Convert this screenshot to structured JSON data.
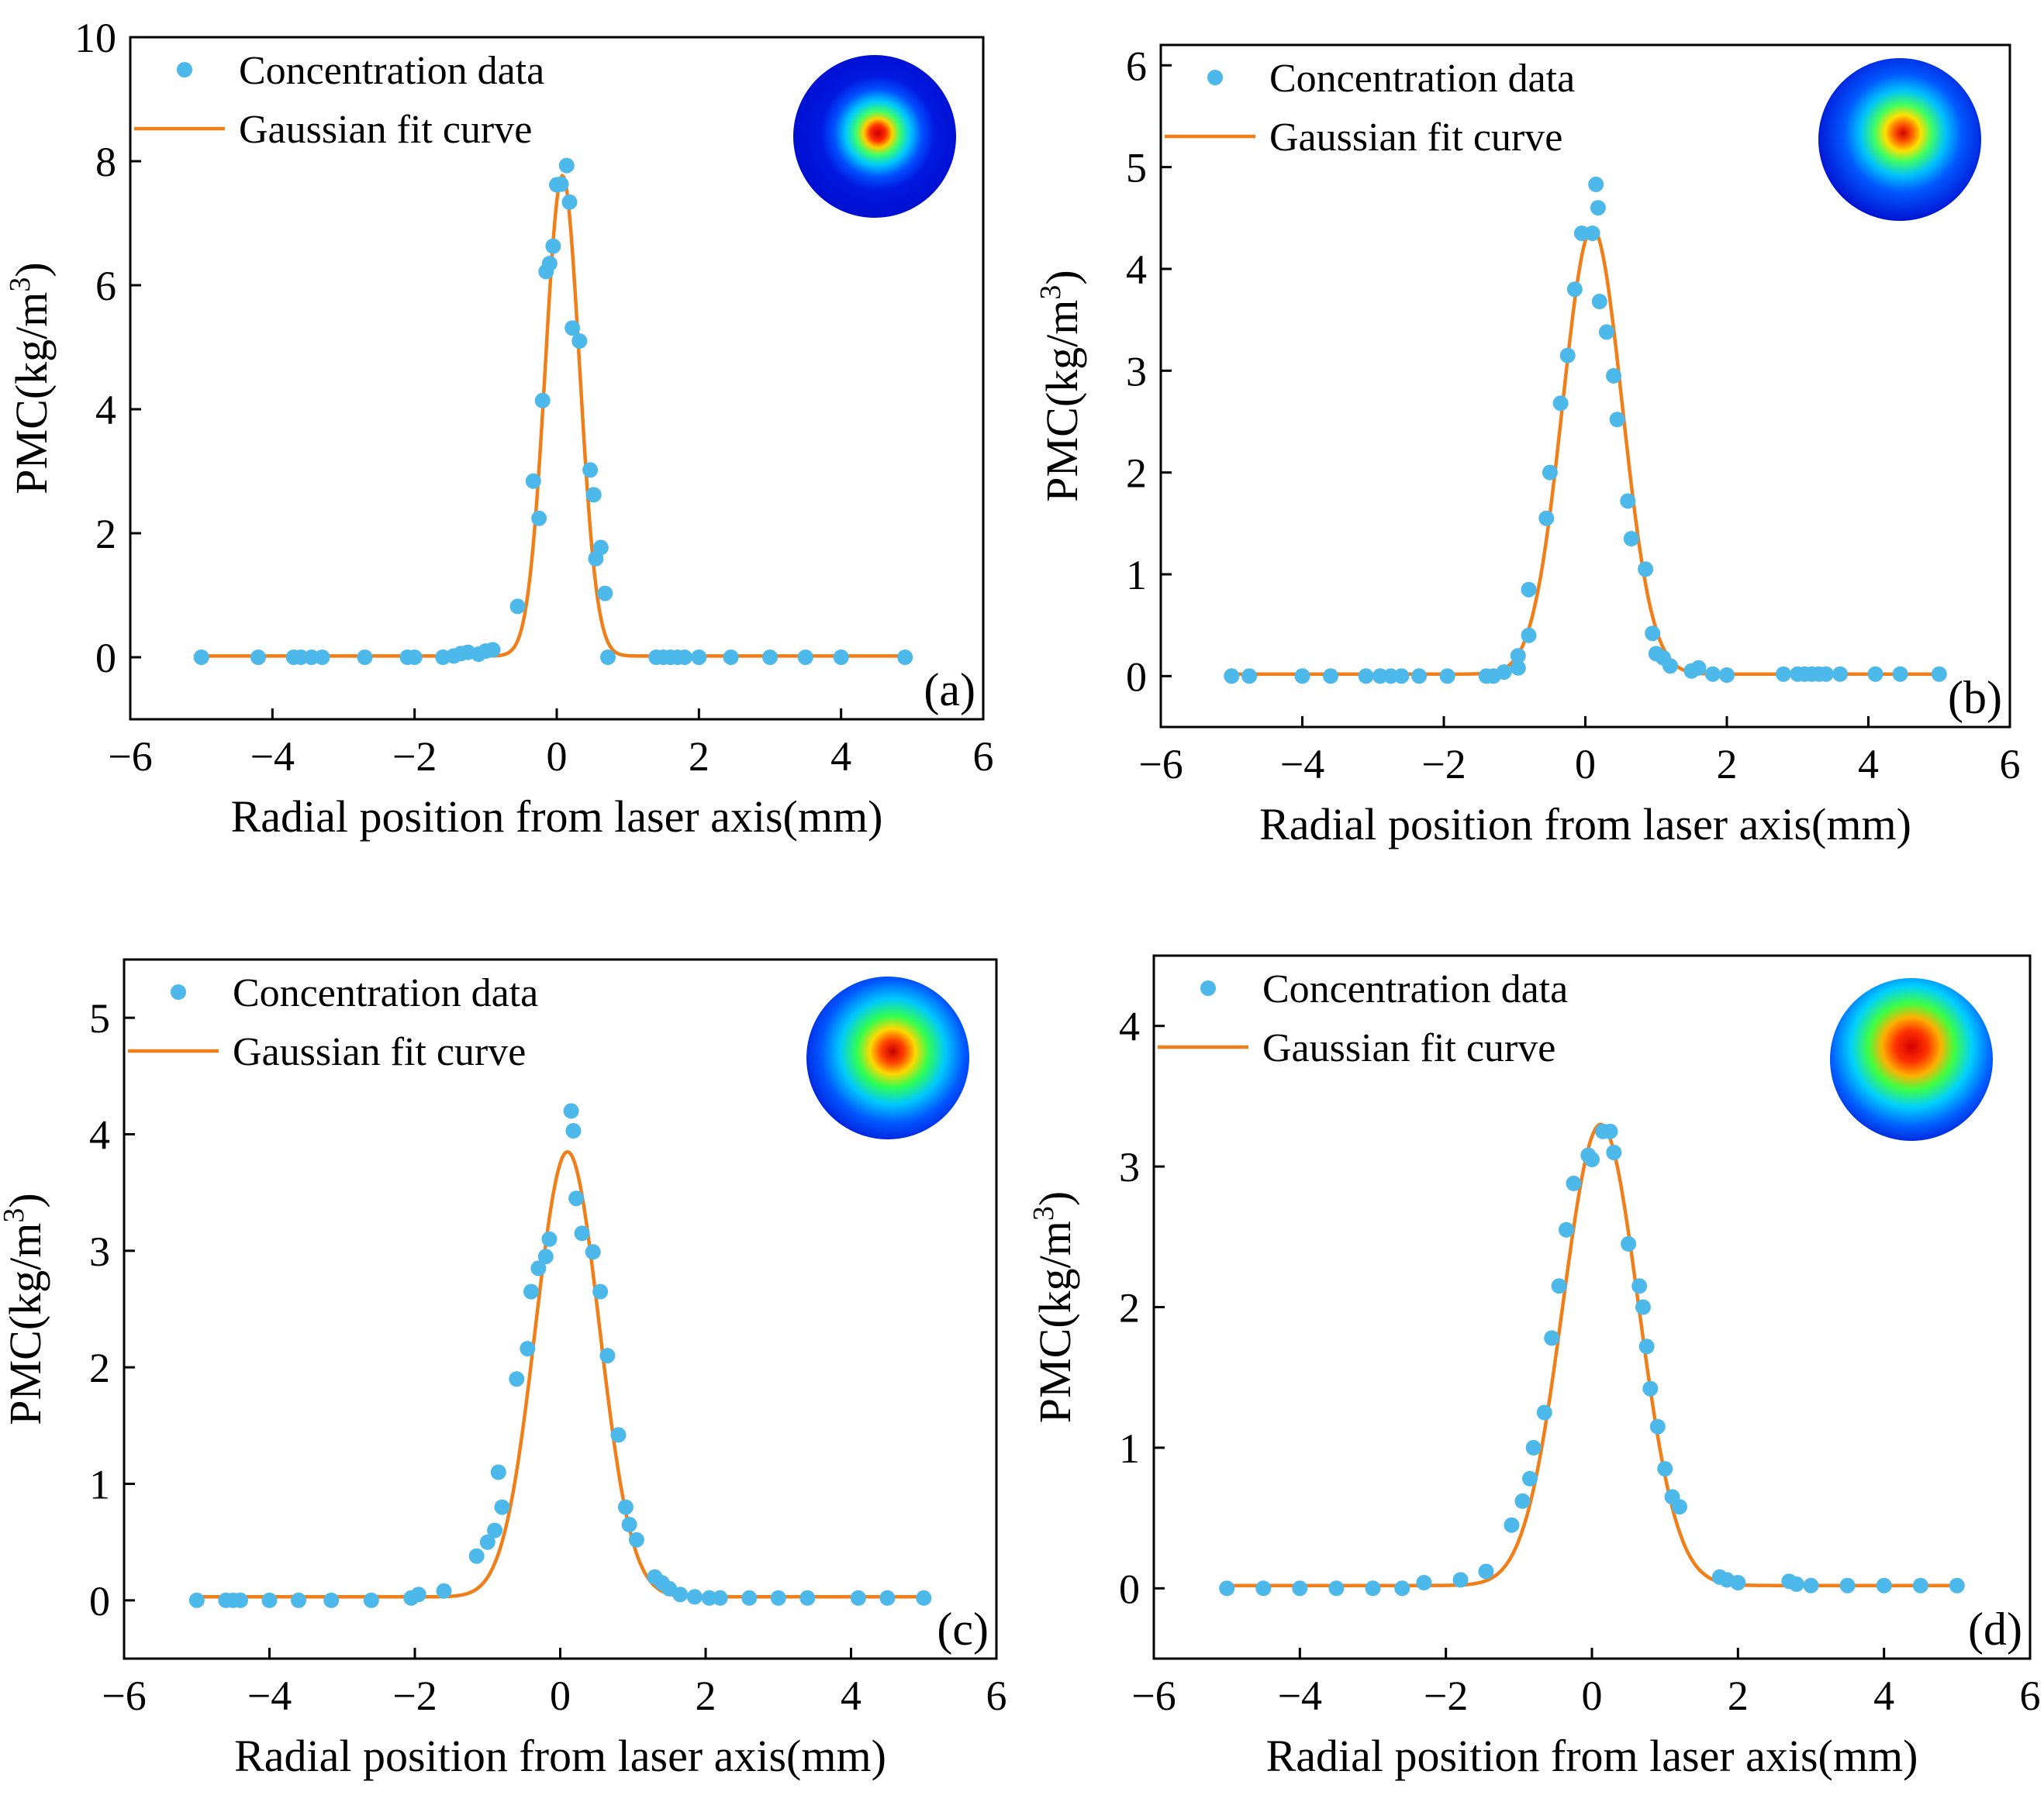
{
  "colors": {
    "data_points": "#4db8ea",
    "fit_curve": "#f07f1a",
    "axes": "#000000"
  },
  "chart_data": [
    {
      "type": "scatter",
      "panel_label": "(a)",
      "xlabel": "Radial position from laser axis(mm)",
      "ylabel": "PMC(kg/m",
      "ylabel_sup": "3",
      "ylabel_close": ")",
      "xlim": [
        -6,
        6
      ],
      "ylim": [
        -1,
        10
      ],
      "xticks": [
        -6,
        -4,
        -2,
        0,
        2,
        4,
        6
      ],
      "xtick_labels": [
        "−6",
        "−4",
        "−2",
        "0",
        "2",
        "4",
        "6"
      ],
      "yticks": [
        0,
        2,
        4,
        6,
        8,
        10
      ],
      "ytick_labels": [
        "0",
        "2",
        "4",
        "6",
        "8",
        "10"
      ],
      "legend": [
        "Concentration data",
        "Gaussian fit curve"
      ],
      "legend_position": "top-left",
      "inset": "spot-image",
      "fit": {
        "amplitude": 7.75,
        "center": 0.08,
        "sigma": 0.24,
        "offset": 0.02
      },
      "points": [
        [
          -5.0,
          0
        ],
        [
          -4.2,
          0
        ],
        [
          -3.7,
          0
        ],
        [
          -3.6,
          0
        ],
        [
          -3.45,
          0
        ],
        [
          -3.3,
          0
        ],
        [
          -2.7,
          0
        ],
        [
          -2.1,
          0
        ],
        [
          -2.0,
          0
        ],
        [
          -1.6,
          0
        ],
        [
          -1.45,
          0.02
        ],
        [
          -1.35,
          0.06
        ],
        [
          -1.25,
          0.08
        ],
        [
          -1.1,
          0.05
        ],
        [
          -1.0,
          0.1
        ],
        [
          -0.9,
          0.12
        ],
        [
          -0.55,
          0.82
        ],
        [
          -0.33,
          2.84
        ],
        [
          -0.25,
          2.24
        ],
        [
          -0.2,
          4.14
        ],
        [
          -0.15,
          6.22
        ],
        [
          -0.1,
          6.35
        ],
        [
          -0.05,
          6.63
        ],
        [
          0.0,
          7.62
        ],
        [
          0.06,
          7.63
        ],
        [
          0.14,
          7.93
        ],
        [
          0.18,
          7.34
        ],
        [
          0.22,
          5.31
        ],
        [
          0.32,
          5.1
        ],
        [
          0.47,
          3.02
        ],
        [
          0.52,
          2.62
        ],
        [
          0.55,
          1.59
        ],
        [
          0.62,
          1.77
        ],
        [
          0.68,
          1.03
        ],
        [
          0.72,
          0.0
        ],
        [
          1.4,
          0
        ],
        [
          1.5,
          0
        ],
        [
          1.6,
          0
        ],
        [
          1.7,
          0
        ],
        [
          1.8,
          0
        ],
        [
          2.0,
          0
        ],
        [
          2.45,
          0
        ],
        [
          3.0,
          0
        ],
        [
          3.5,
          0
        ],
        [
          4.0,
          0
        ],
        [
          4.9,
          0
        ]
      ]
    },
    {
      "type": "scatter",
      "panel_label": "(b)",
      "xlabel": "Radial position from laser axis(mm)",
      "ylabel": "PMC(kg/m",
      "ylabel_sup": "3",
      "ylabel_close": ")",
      "xlim": [
        -6,
        6
      ],
      "ylim": [
        -0.5,
        6.2
      ],
      "xticks": [
        -6,
        -4,
        -2,
        0,
        2,
        4,
        6
      ],
      "xtick_labels": [
        "−6",
        "−4",
        "−2",
        "0",
        "2",
        "4",
        "6"
      ],
      "yticks": [
        0,
        1,
        2,
        3,
        4,
        5,
        6
      ],
      "ytick_labels": [
        "0",
        "1",
        "2",
        "3",
        "4",
        "5",
        "6"
      ],
      "legend": [
        "Concentration data",
        "Gaussian fit curve"
      ],
      "legend_position": "top-left",
      "inset": "spot-image",
      "fit": {
        "amplitude": 4.38,
        "center": 0.1,
        "sigma": 0.42,
        "offset": 0.02
      },
      "points": [
        [
          -5.0,
          0
        ],
        [
          -4.75,
          0
        ],
        [
          -4.0,
          0
        ],
        [
          -3.6,
          0
        ],
        [
          -3.1,
          0
        ],
        [
          -2.9,
          0
        ],
        [
          -2.75,
          0
        ],
        [
          -2.6,
          0
        ],
        [
          -2.35,
          0
        ],
        [
          -1.95,
          0
        ],
        [
          -1.4,
          0
        ],
        [
          -1.3,
          0
        ],
        [
          -1.15,
          0.04
        ],
        [
          -0.95,
          0.08
        ],
        [
          -0.95,
          0.2
        ],
        [
          -0.8,
          0.4
        ],
        [
          -0.8,
          0.85
        ],
        [
          -0.55,
          1.55
        ],
        [
          -0.5,
          2.0
        ],
        [
          -0.35,
          2.68
        ],
        [
          -0.25,
          3.15
        ],
        [
          -0.15,
          3.8
        ],
        [
          -0.05,
          4.35
        ],
        [
          0.1,
          4.35
        ],
        [
          0.15,
          4.83
        ],
        [
          0.18,
          4.6
        ],
        [
          0.2,
          3.68
        ],
        [
          0.3,
          3.38
        ],
        [
          0.4,
          2.95
        ],
        [
          0.45,
          2.52
        ],
        [
          0.6,
          1.72
        ],
        [
          0.65,
          1.35
        ],
        [
          0.85,
          1.05
        ],
        [
          0.95,
          0.42
        ],
        [
          1.0,
          0.22
        ],
        [
          1.1,
          0.18
        ],
        [
          1.2,
          0.1
        ],
        [
          1.5,
          0.05
        ],
        [
          1.6,
          0.08
        ],
        [
          1.8,
          0.02
        ],
        [
          2.0,
          0.01
        ],
        [
          2.8,
          0.02
        ],
        [
          3.0,
          0.02
        ],
        [
          3.1,
          0.02
        ],
        [
          3.2,
          0.02
        ],
        [
          3.3,
          0.02
        ],
        [
          3.4,
          0.02
        ],
        [
          3.6,
          0.02
        ],
        [
          4.1,
          0.02
        ],
        [
          4.45,
          0.02
        ],
        [
          5.0,
          0.02
        ]
      ]
    },
    {
      "type": "scatter",
      "panel_label": "(c)",
      "xlabel": "Radial position from laser axis(mm)",
      "ylabel": "PMC(kg/m",
      "ylabel_sup": "3",
      "ylabel_close": ")",
      "xlim": [
        -6,
        6
      ],
      "ylim": [
        -0.5,
        5.5
      ],
      "xticks": [
        -6,
        -4,
        -2,
        0,
        2,
        4,
        6
      ],
      "xtick_labels": [
        "−6",
        "−4",
        "−2",
        "0",
        "2",
        "4",
        "6"
      ],
      "yticks": [
        0,
        1,
        2,
        3,
        4,
        5
      ],
      "ytick_labels": [
        "0",
        "1",
        "2",
        "3",
        "4",
        "5"
      ],
      "legend": [
        "Concentration data",
        "Gaussian fit curve"
      ],
      "legend_position": "top-left",
      "inset": "spot-image",
      "fit": {
        "amplitude": 3.82,
        "center": 0.1,
        "sigma": 0.44,
        "offset": 0.03
      },
      "points": [
        [
          -5.0,
          0
        ],
        [
          -4.6,
          0
        ],
        [
          -4.5,
          0
        ],
        [
          -4.4,
          0
        ],
        [
          -4.0,
          0
        ],
        [
          -3.6,
          0
        ],
        [
          -3.15,
          0
        ],
        [
          -2.6,
          0
        ],
        [
          -2.05,
          0.02
        ],
        [
          -1.95,
          0.05
        ],
        [
          -1.6,
          0.08
        ],
        [
          -1.15,
          0.38
        ],
        [
          -1.0,
          0.5
        ],
        [
          -0.9,
          0.6
        ],
        [
          -0.8,
          0.8
        ],
        [
          -0.85,
          1.1
        ],
        [
          -0.6,
          1.9
        ],
        [
          -0.45,
          2.16
        ],
        [
          -0.4,
          2.65
        ],
        [
          -0.3,
          2.85
        ],
        [
          -0.2,
          2.95
        ],
        [
          -0.15,
          3.1
        ],
        [
          0.15,
          4.2
        ],
        [
          0.18,
          4.03
        ],
        [
          0.22,
          3.45
        ],
        [
          0.3,
          3.15
        ],
        [
          0.45,
          2.99
        ],
        [
          0.55,
          2.65
        ],
        [
          0.65,
          2.1
        ],
        [
          0.8,
          1.42
        ],
        [
          0.9,
          0.8
        ],
        [
          0.95,
          0.65
        ],
        [
          1.05,
          0.52
        ],
        [
          1.3,
          0.2
        ],
        [
          1.4,
          0.15
        ],
        [
          1.5,
          0.1
        ],
        [
          1.65,
          0.05
        ],
        [
          1.85,
          0.03
        ],
        [
          2.05,
          0.02
        ],
        [
          2.2,
          0.02
        ],
        [
          2.6,
          0.02
        ],
        [
          3.0,
          0.02
        ],
        [
          3.4,
          0.02
        ],
        [
          4.1,
          0.02
        ],
        [
          4.5,
          0.02
        ],
        [
          5.0,
          0.02
        ]
      ]
    },
    {
      "type": "scatter",
      "panel_label": "(d)",
      "xlabel": "Radial position from laser axis(mm)",
      "ylabel": "PMC(kg/m",
      "ylabel_sup": "3",
      "ylabel_close": ")",
      "xlim": [
        -6,
        6
      ],
      "ylim": [
        -0.5,
        4.5
      ],
      "xticks": [
        -6,
        -4,
        -2,
        0,
        2,
        4,
        6
      ],
      "xtick_labels": [
        "−6",
        "−4",
        "−2",
        "0",
        "2",
        "4",
        "6"
      ],
      "yticks": [
        0,
        1,
        2,
        3,
        4
      ],
      "ytick_labels": [
        "0",
        "1",
        "2",
        "3",
        "4"
      ],
      "legend": [
        "Concentration data",
        "Gaussian fit curve"
      ],
      "legend_position": "top-left",
      "inset": "spot-image",
      "fit": {
        "amplitude": 3.28,
        "center": 0.12,
        "sigma": 0.52,
        "offset": 0.02
      },
      "points": [
        [
          -5.0,
          0
        ],
        [
          -4.5,
          0
        ],
        [
          -4.0,
          0
        ],
        [
          -3.5,
          0
        ],
        [
          -3.0,
          0
        ],
        [
          -2.6,
          0
        ],
        [
          -2.3,
          0.04
        ],
        [
          -1.8,
          0.06
        ],
        [
          -1.45,
          0.12
        ],
        [
          -1.1,
          0.45
        ],
        [
          -0.95,
          0.62
        ],
        [
          -0.85,
          0.78
        ],
        [
          -0.8,
          1.0
        ],
        [
          -0.65,
          1.25
        ],
        [
          -0.55,
          1.78
        ],
        [
          -0.45,
          2.15
        ],
        [
          -0.35,
          2.55
        ],
        [
          -0.25,
          2.88
        ],
        [
          -0.05,
          3.08
        ],
        [
          0.0,
          3.05
        ],
        [
          0.15,
          3.25
        ],
        [
          0.25,
          3.25
        ],
        [
          0.3,
          3.1
        ],
        [
          0.5,
          2.45
        ],
        [
          0.65,
          2.15
        ],
        [
          0.7,
          2.0
        ],
        [
          0.75,
          1.72
        ],
        [
          0.8,
          1.42
        ],
        [
          0.9,
          1.15
        ],
        [
          1.0,
          0.85
        ],
        [
          1.1,
          0.65
        ],
        [
          1.2,
          0.58
        ],
        [
          1.75,
          0.08
        ],
        [
          1.85,
          0.06
        ],
        [
          2.0,
          0.04
        ],
        [
          2.7,
          0.05
        ],
        [
          2.8,
          0.03
        ],
        [
          3.0,
          0.02
        ],
        [
          3.5,
          0.02
        ],
        [
          4.0,
          0.02
        ],
        [
          4.5,
          0.02
        ],
        [
          5.0,
          0.02
        ]
      ]
    }
  ]
}
